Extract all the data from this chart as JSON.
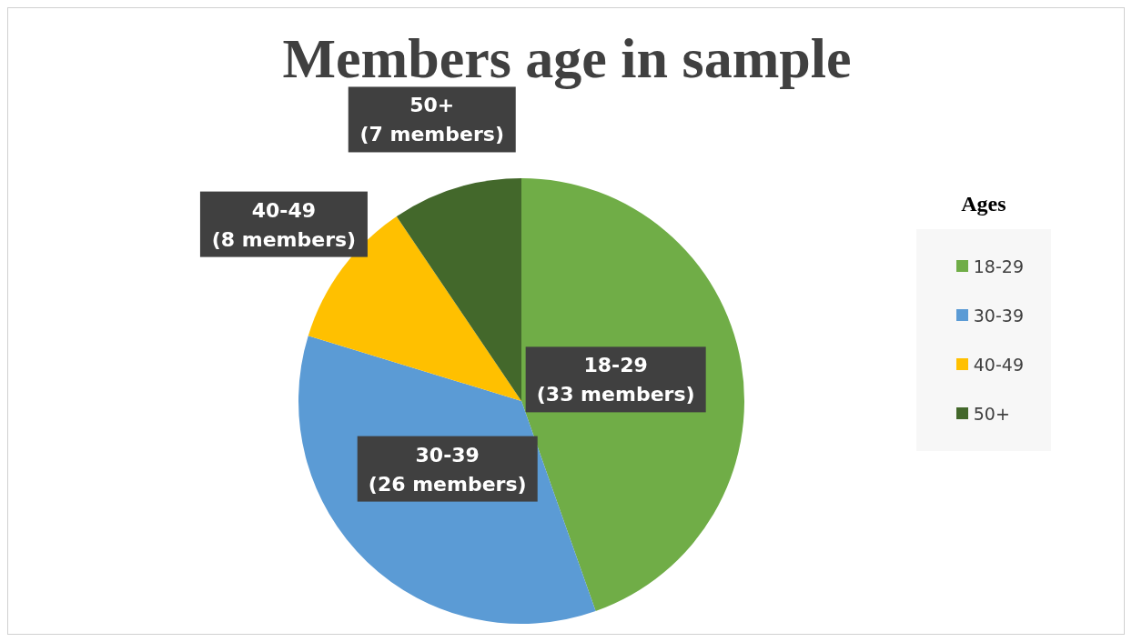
{
  "chart_data": {
    "type": "pie",
    "title": "Members age in sample",
    "legend_title": "Ages",
    "legend": "right",
    "categories": [
      "18-29",
      "30-39",
      "40-49",
      "50+"
    ],
    "values": [
      33,
      26,
      8,
      7
    ],
    "value_labels": [
      "(33 members)",
      "(26 members)",
      "(8 members)",
      "(7 members)"
    ],
    "colors": [
      "#70ad47",
      "#5b9bd5",
      "#ffc000",
      "#43682b"
    ]
  }
}
